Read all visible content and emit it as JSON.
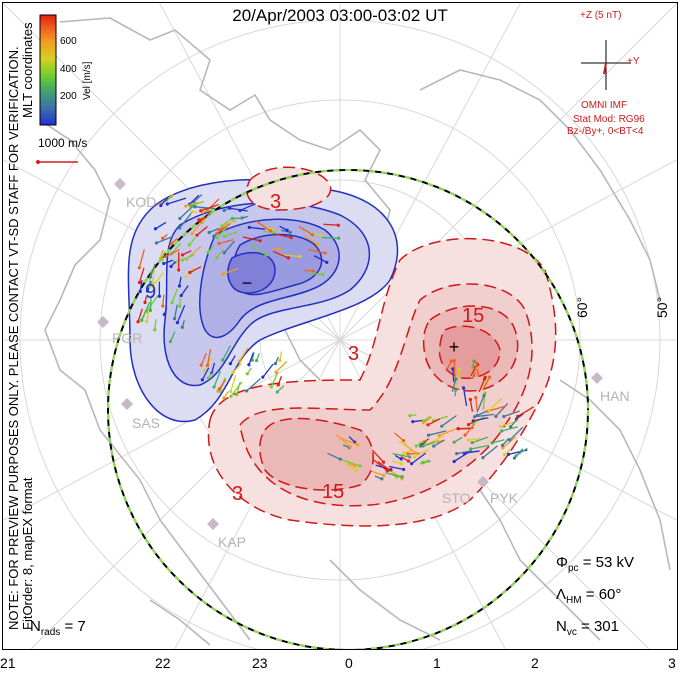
{
  "title": "20/Apr/2003 03:00-03:02 UT",
  "notice": "NOTE: FOR PREVIEW PURPOSES ONLY. PLEASE CONTACT VT-SD STAFF FOR VERIFICATION.",
  "fit_info": "FitOrder: 8, mapEX format",
  "mlt_label": "MLT coordinates",
  "colorbar": {
    "label": "Vel [m/s]",
    "ticks": [
      "600",
      "400",
      "200"
    ],
    "colors": [
      "#2030d0",
      "#3a7a9a",
      "#40b060",
      "#70d030",
      "#d8d020",
      "#f0a020",
      "#f06020",
      "#e02010"
    ]
  },
  "scale_label": "1000 m/s",
  "imf": {
    "z_label": "+Z (5 nT)",
    "y_label": "+Y",
    "source": "OMNI IMF",
    "stat_mod": "Stat Mod: RG96",
    "condition": "Bz-/By+, 0<BT<4"
  },
  "lat_labels": [
    "60°",
    "50°"
  ],
  "stations": [
    "KOD",
    "PGR",
    "SAS",
    "KAP",
    "HAN",
    "STO",
    "PYK"
  ],
  "contour_labels": [
    "3",
    "9",
    "3",
    "15",
    "15",
    "3"
  ],
  "extrema": {
    "min_symbol": "−",
    "max_symbol": "+"
  },
  "stats": {
    "phi_pc": "Φ",
    "phi_pc_sub": "pc",
    "phi_pc_value": "= 53 kV",
    "lambda_hm": "Λ",
    "lambda_hm_sub": "HM",
    "lambda_hm_value": "= 60°",
    "n_vc": "N",
    "n_vc_sub": "vc",
    "n_vc_value": "= 301",
    "n_rads": "N",
    "n_rads_sub": "rads",
    "n_rads_value": "= 7"
  },
  "mlt_axis": [
    "21",
    "22",
    "23",
    "0",
    "1",
    "2",
    "3"
  ]
}
